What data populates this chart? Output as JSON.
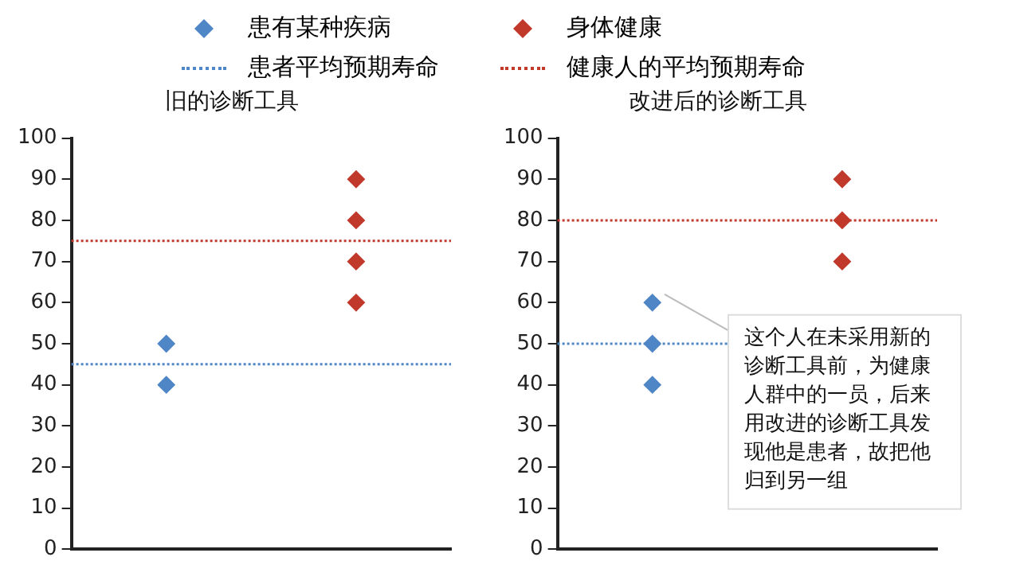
{
  "chart_data": [
    {
      "type": "scatter",
      "title": "旧的诊断工具",
      "categories": [
        null,
        null
      ],
      "ylim": [
        0,
        100
      ],
      "yticks": [
        0,
        10,
        20,
        30,
        40,
        50,
        60,
        70,
        80,
        90,
        100
      ],
      "tick_labels": "y",
      "grid": false,
      "legend": "top",
      "marker": "diamond",
      "series": [
        {
          "name": "患有某种疾病",
          "color": "#4f86c6",
          "values": [
            50,
            null
          ]
        },
        {
          "color": "#4f86c6",
          "values": [
            40,
            null
          ]
        },
        {
          "name": "身体健康",
          "color": "#c0392b",
          "values": [
            null,
            90
          ]
        },
        {
          "color": "#c0392b",
          "values": [
            null,
            80
          ]
        },
        {
          "color": "#c0392b",
          "values": [
            null,
            70
          ]
        },
        {
          "color": "#c0392b",
          "values": [
            null,
            60
          ]
        }
      ],
      "ref_lines": [
        {
          "axis": "y",
          "value": 45,
          "label": "患者平均预期寿命",
          "color": "#4f86c6",
          "line_style": "dotted"
        },
        {
          "axis": "y",
          "value": 75,
          "label": "健康人的平均预期寿命",
          "color": "#c0392b",
          "line_style": "dotted"
        }
      ]
    },
    {
      "type": "scatter",
      "title": "改进后的诊断工具",
      "categories": [
        null,
        null
      ],
      "ylim": [
        0,
        100
      ],
      "yticks": [
        0,
        10,
        20,
        30,
        40,
        50,
        60,
        70,
        80,
        90,
        100
      ],
      "tick_labels": "y",
      "grid": false,
      "marker": "diamond",
      "series": [
        {
          "color": "#4f86c6",
          "values": [
            60,
            null
          ]
        },
        {
          "color": "#4f86c6",
          "values": [
            50,
            null
          ]
        },
        {
          "color": "#4f86c6",
          "values": [
            40,
            null
          ]
        },
        {
          "color": "#c0392b",
          "values": [
            null,
            90
          ]
        },
        {
          "color": "#c0392b",
          "values": [
            null,
            80
          ]
        },
        {
          "color": "#c0392b",
          "values": [
            null,
            70
          ]
        }
      ],
      "ref_lines": [
        {
          "axis": "y",
          "value": 50,
          "color": "#4f86c6",
          "line_style": "dotted"
        },
        {
          "axis": "y",
          "value": 80,
          "color": "#c0392b",
          "line_style": "dotted"
        }
      ],
      "annotations": [
        "这个人在未采用新的诊断工具前，为健康人群中的一员，后来用改进的诊断工具发现他是患者，故把他归到另一组"
      ]
    }
  ]
}
